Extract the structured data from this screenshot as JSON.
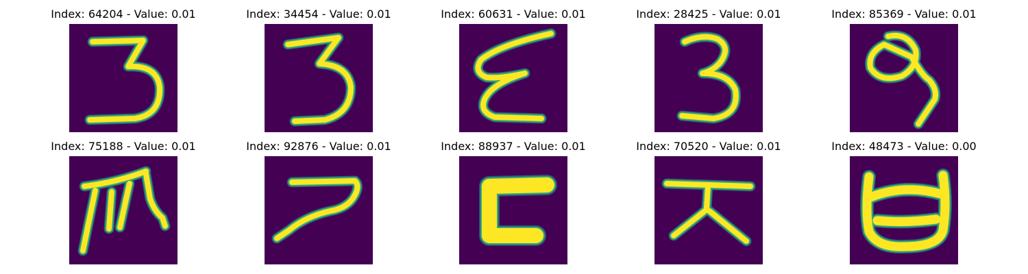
{
  "colors": {
    "background": "#440154",
    "stroke": "#fde725",
    "edge": "#35b779"
  },
  "items": [
    {
      "title": "Index: 64204 - Value: 0.01",
      "glyph": "digit-three"
    },
    {
      "title": "Index: 34454 - Value: 0.01",
      "glyph": "digit-three"
    },
    {
      "title": "Index: 60631 - Value: 0.01",
      "glyph": "epsilon"
    },
    {
      "title": "Index: 28425 - Value: 0.01",
      "glyph": "digit-three"
    },
    {
      "title": "Index: 85369 - Value: 0.01",
      "glyph": "digit-nine"
    },
    {
      "title": "Index: 75188 - Value: 0.01",
      "glyph": "character"
    },
    {
      "title": "Index: 92876 - Value: 0.01",
      "glyph": "character"
    },
    {
      "title": "Index: 88937 - Value: 0.01",
      "glyph": "character"
    },
    {
      "title": "Index: 70520 - Value: 0.01",
      "glyph": "character"
    },
    {
      "title": "Index: 48473 - Value: 0.00",
      "glyph": "character"
    }
  ]
}
